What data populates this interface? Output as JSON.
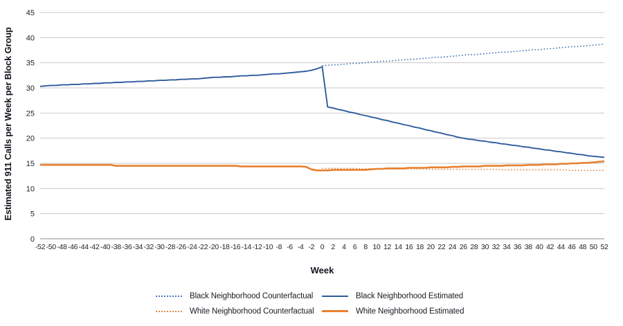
{
  "chart_data": {
    "type": "line",
    "title": "",
    "xlabel": "Week",
    "ylabel": "Estimated 911 Calls per Week per Block Group",
    "xlim": [
      -52,
      52
    ],
    "ylim": [
      0,
      45
    ],
    "y_ticks": [
      0,
      5,
      10,
      15,
      20,
      25,
      30,
      35,
      40,
      45
    ],
    "x_ticks": [
      -52,
      -50,
      -48,
      -46,
      -44,
      -42,
      -40,
      -38,
      -36,
      -34,
      -32,
      -30,
      -28,
      -26,
      -24,
      -22,
      -20,
      -18,
      -16,
      -14,
      -12,
      -10,
      -8,
      -6,
      -4,
      -2,
      0,
      2,
      4,
      6,
      8,
      10,
      12,
      14,
      16,
      18,
      20,
      22,
      24,
      26,
      28,
      30,
      32,
      34,
      36,
      38,
      40,
      42,
      44,
      46,
      48,
      50,
      52
    ],
    "grid": "horizontal",
    "legend_position": "bottom",
    "colors": {
      "blue_estimated": "#2e5b9d",
      "blue_counterfactual": "#4a77b4",
      "orange_estimated": "#e8802f",
      "orange_counterfactual": "#e2873e",
      "gridline": "#c9c9c9",
      "axis_line": "#8f8f8f"
    },
    "series": [
      {
        "name": "Black Neighborhood Counterfactual",
        "style": "dotted",
        "color": "#4a77b4",
        "x_start": 0,
        "values": [
          34.4,
          34.5,
          34.6,
          34.6,
          34.7,
          34.8,
          34.9,
          34.9,
          35.0,
          35.1,
          35.2,
          35.3,
          35.3,
          35.4,
          35.5,
          35.6,
          35.7,
          35.7,
          35.8,
          35.9,
          36.0,
          36.1,
          36.1,
          36.2,
          36.3,
          36.4,
          36.5,
          36.6,
          36.6,
          36.7,
          36.8,
          36.9,
          37.0,
          37.1,
          37.1,
          37.2,
          37.3,
          37.4,
          37.5,
          37.6,
          37.6,
          37.7,
          37.8,
          37.9,
          38.0,
          38.1,
          38.2,
          38.2,
          38.3,
          38.4,
          38.5,
          38.6,
          38.7
        ]
      },
      {
        "name": "Black Neighborhood Estimated",
        "style": "solid",
        "color": "#2e5b9d",
        "x_start": -52,
        "values": [
          30.3,
          30.4,
          30.5,
          30.5,
          30.6,
          30.6,
          30.7,
          30.7,
          30.8,
          30.8,
          30.9,
          30.9,
          31.0,
          31.0,
          31.1,
          31.1,
          31.2,
          31.2,
          31.3,
          31.3,
          31.4,
          31.4,
          31.5,
          31.5,
          31.6,
          31.6,
          31.7,
          31.7,
          31.8,
          31.8,
          31.9,
          32.0,
          32.1,
          32.1,
          32.2,
          32.2,
          32.3,
          32.4,
          32.4,
          32.5,
          32.5,
          32.6,
          32.7,
          32.8,
          32.8,
          32.9,
          33.0,
          33.1,
          33.2,
          33.3,
          33.5,
          33.8,
          34.2,
          26.2,
          26.0,
          25.7,
          25.5,
          25.2,
          25.0,
          24.7,
          24.5,
          24.2,
          24.0,
          23.7,
          23.5,
          23.2,
          23.0,
          22.7,
          22.5,
          22.2,
          22.0,
          21.7,
          21.5,
          21.2,
          21.0,
          20.7,
          20.5,
          20.2,
          20.0,
          19.8,
          19.7,
          19.5,
          19.4,
          19.2,
          19.1,
          18.9,
          18.8,
          18.6,
          18.5,
          18.3,
          18.2,
          18.0,
          17.9,
          17.7,
          17.6,
          17.4,
          17.3,
          17.1,
          17.0,
          16.8,
          16.7,
          16.5,
          16.4,
          16.3,
          16.2
        ]
      },
      {
        "name": "White Neighborhood Counterfactual",
        "style": "dotted",
        "color": "#e2873e",
        "x_start": 0,
        "values": [
          14.0,
          14.0,
          14.0,
          14.0,
          14.0,
          14.0,
          14.0,
          13.9,
          13.9,
          13.9,
          13.9,
          13.9,
          13.9,
          13.9,
          13.9,
          13.9,
          13.9,
          13.9,
          13.9,
          13.9,
          13.8,
          13.8,
          13.8,
          13.8,
          13.8,
          13.8,
          13.8,
          13.8,
          13.8,
          13.8,
          13.8,
          13.8,
          13.8,
          13.7,
          13.7,
          13.7,
          13.7,
          13.7,
          13.7,
          13.7,
          13.7,
          13.7,
          13.7,
          13.7,
          13.7,
          13.7,
          13.6,
          13.6,
          13.6,
          13.6,
          13.6,
          13.6,
          13.6
        ]
      },
      {
        "name": "White Neighborhood Estimated",
        "style": "solid",
        "color": "#e8802f",
        "x_start": -52,
        "values": [
          14.7,
          14.7,
          14.7,
          14.7,
          14.7,
          14.7,
          14.7,
          14.7,
          14.7,
          14.7,
          14.7,
          14.7,
          14.7,
          14.7,
          14.5,
          14.5,
          14.5,
          14.5,
          14.5,
          14.5,
          14.5,
          14.5,
          14.5,
          14.5,
          14.5,
          14.5,
          14.5,
          14.5,
          14.5,
          14.5,
          14.5,
          14.5,
          14.5,
          14.5,
          14.5,
          14.5,
          14.5,
          14.4,
          14.4,
          14.4,
          14.4,
          14.4,
          14.4,
          14.4,
          14.4,
          14.4,
          14.4,
          14.4,
          14.4,
          14.3,
          13.8,
          13.6,
          13.6,
          13.6,
          13.7,
          13.7,
          13.7,
          13.7,
          13.7,
          13.7,
          13.7,
          13.8,
          13.9,
          13.9,
          14.0,
          14.0,
          14.0,
          14.0,
          14.1,
          14.1,
          14.1,
          14.1,
          14.2,
          14.2,
          14.2,
          14.2,
          14.3,
          14.3,
          14.4,
          14.4,
          14.4,
          14.4,
          14.5,
          14.5,
          14.5,
          14.5,
          14.6,
          14.6,
          14.6,
          14.6,
          14.7,
          14.7,
          14.7,
          14.8,
          14.8,
          14.8,
          14.9,
          14.9,
          15.0,
          15.0,
          15.1,
          15.1,
          15.2,
          15.3,
          15.4
        ]
      }
    ]
  },
  "legend": {
    "items": [
      {
        "label": "Black Neighborhood Counterfactual",
        "style": "dotted",
        "color": "#4a77b4"
      },
      {
        "label": "Black Neighborhood Estimated",
        "style": "solid",
        "color": "#2e5b9d"
      },
      {
        "label": "White Neighborhood Counterfactual",
        "style": "dotted",
        "color": "#e2873e"
      },
      {
        "label": "White Neighborhood Estimated",
        "style": "solid",
        "color": "#e8802f"
      }
    ]
  }
}
